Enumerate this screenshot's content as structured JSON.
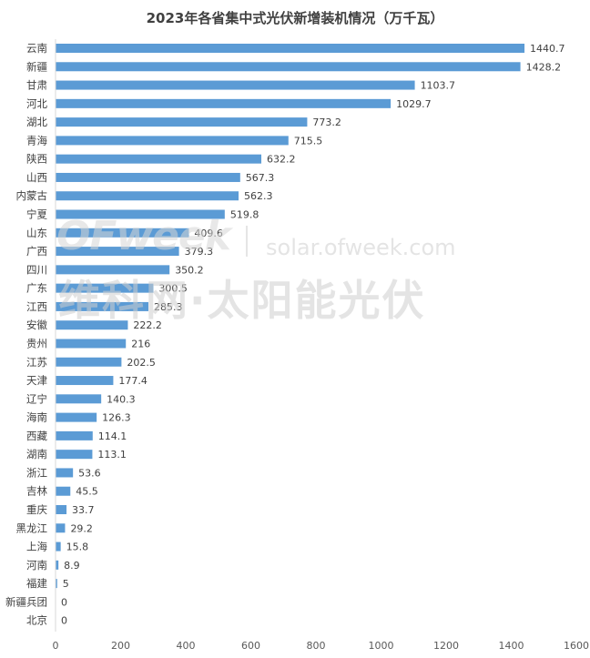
{
  "chart_data": {
    "type": "bar",
    "orientation": "horizontal",
    "title": "2023年各省集中式光伏新增装机情况（万千瓦）",
    "categories": [
      "云南",
      "新疆",
      "甘肃",
      "河北",
      "湖北",
      "青海",
      "陕西",
      "山西",
      "内蒙古",
      "宁夏",
      "山东",
      "广西",
      "四川",
      "广东",
      "江西",
      "安徽",
      "贵州",
      "江苏",
      "天津",
      "辽宁",
      "海南",
      "西藏",
      "湖南",
      "浙江",
      "吉林",
      "重庆",
      "黑龙江",
      "上海",
      "河南",
      "福建",
      "新疆兵团",
      "北京"
    ],
    "values": [
      1440.7,
      1428.2,
      1103.7,
      1029.7,
      773.2,
      715.5,
      632.2,
      567.3,
      562.3,
      519.8,
      409.6,
      379.3,
      350.2,
      300.5,
      285.3,
      222.2,
      216,
      202.5,
      177.4,
      140.3,
      126.3,
      114.1,
      113.1,
      53.6,
      45.5,
      33.7,
      29.2,
      15.8,
      8.9,
      5,
      0,
      0
    ],
    "value_labels": [
      "1440.7",
      "1428.2",
      "1103.7",
      "1029.7",
      "773.2",
      "715.5",
      "632.2",
      "567.3",
      "562.3",
      "519.8",
      "409.6",
      "379.3",
      "350.2",
      "300.5",
      "285.3",
      "222.2",
      "216",
      "202.5",
      "177.4",
      "140.3",
      "126.3",
      "114.1",
      "113.1",
      "53.6",
      "45.5",
      "33.7",
      "29.2",
      "15.8",
      "8.9",
      "5",
      "0",
      "0"
    ],
    "xlim": [
      0,
      1600
    ],
    "xticks": [
      "0",
      "200",
      "400",
      "600",
      "800",
      "1000",
      "1200",
      "1400",
      "1600"
    ],
    "xticks_values": [
      0,
      200,
      400,
      600,
      800,
      1000,
      1200,
      1400,
      1600
    ],
    "bar_color": "#5b9bd5",
    "grid": false
  },
  "watermark": {
    "logo": "OFweek",
    "url": "solar.ofweek.com",
    "text": "维科网·太阳能光伏"
  }
}
